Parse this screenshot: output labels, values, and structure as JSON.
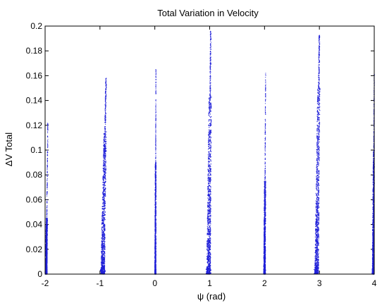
{
  "chart_data": {
    "type": "scatter",
    "title": "Total Variation in Velocity",
    "xlabel": "ψ (rad)",
    "ylabel": "ΔV  Total",
    "xlim": [
      -2,
      4
    ],
    "ylim": [
      0,
      0.2
    ],
    "xticks": [
      -2,
      -1,
      0,
      1,
      2,
      3,
      4
    ],
    "yticks": [
      0,
      0.02,
      0.04,
      0.06,
      0.08,
      0.1,
      0.12,
      0.14,
      0.16,
      0.18,
      0.2
    ],
    "grid": false,
    "color": "#1f1fd8",
    "marker": "dot",
    "clusters": [
      {
        "x_center": -1.98,
        "x_spread": 0.03,
        "y_max": 0.122,
        "dense_y_max": 0.045,
        "lean": 0.03
      },
      {
        "x_center": -0.95,
        "x_spread": 0.07,
        "y_max": 0.158,
        "dense_y_max": 0.115,
        "lean": 0.06
      },
      {
        "x_center": 0.01,
        "x_spread": 0.02,
        "y_max": 0.165,
        "dense_y_max": 0.09,
        "lean": 0.01
      },
      {
        "x_center": 0.98,
        "x_spread": 0.07,
        "y_max": 0.196,
        "dense_y_max": 0.143,
        "lean": 0.04
      },
      {
        "x_center": 2.0,
        "x_spread": 0.03,
        "y_max": 0.162,
        "dense_y_max": 0.075,
        "lean": 0.02
      },
      {
        "x_center": 2.95,
        "x_spread": 0.07,
        "y_max": 0.193,
        "dense_y_max": 0.15,
        "lean": 0.05
      },
      {
        "x_center": 3.98,
        "x_spread": 0.03,
        "y_max": 0.162,
        "dense_y_max": 0.1,
        "lean": 0.02
      }
    ]
  }
}
